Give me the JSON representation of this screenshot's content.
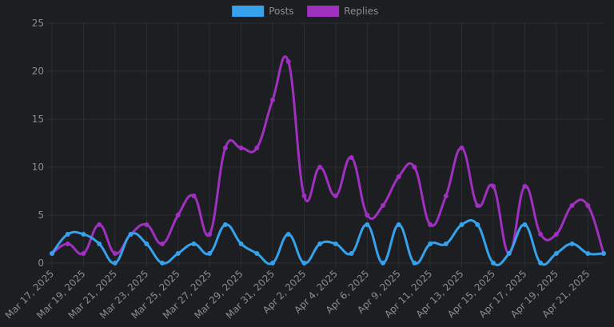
{
  "chart_data": {
    "type": "line",
    "title": "",
    "xlabel": "",
    "ylabel": "",
    "ylim": [
      0,
      25
    ],
    "yticks": [
      0,
      5,
      10,
      15,
      20,
      25
    ],
    "grid": true,
    "legend_position": "top-center",
    "x": [
      "Mar 17, 2025",
      "Mar 18, 2025",
      "Mar 19, 2025",
      "Mar 20, 2025",
      "Mar 21, 2025",
      "Mar 22, 2025",
      "Mar 23, 2025",
      "Mar 24, 2025",
      "Mar 25, 2025",
      "Mar 26, 2025",
      "Mar 27, 2025",
      "Mar 28, 2025",
      "Mar 29, 2025",
      "Mar 30, 2025",
      "Mar 31, 2025",
      "Apr 1, 2025",
      "Apr 2, 2025",
      "Apr 3, 2025",
      "Apr 4, 2025",
      "Apr 5, 2025",
      "Apr 6, 2025",
      "Apr 8, 2025",
      "Apr 9, 2025",
      "Apr 10, 2025",
      "Apr 11, 2025",
      "Apr 12, 2025",
      "Apr 13, 2025",
      "Apr 14, 2025",
      "Apr 15, 2025",
      "Apr 16, 2025",
      "Apr 17, 2025",
      "Apr 18, 2025",
      "Apr 19, 2025",
      "Apr 20, 2025",
      "Apr 21, 2025",
      "Apr 22, 2025"
    ],
    "x_tick_labels": [
      "Mar 17, 2025",
      "Mar 19, 2025",
      "Mar 21, 2025",
      "Mar 23, 2025",
      "Mar 25, 2025",
      "Mar 27, 2025",
      "Mar 29, 2025",
      "Mar 31, 2025",
      "Apr 2, 2025",
      "Apr 4, 2025",
      "Apr 6, 2025",
      "Apr 9, 2025",
      "Apr 11, 2025",
      "Apr 13, 2025",
      "Apr 15, 2025",
      "Apr 17, 2025",
      "Apr 19, 2025",
      "Apr 21, 2025"
    ],
    "series": [
      {
        "name": "Posts",
        "color": "#36a2eb",
        "values": [
          1,
          3,
          3,
          2,
          0,
          3,
          2,
          0,
          1,
          2,
          1,
          4,
          2,
          1,
          0,
          3,
          0,
          2,
          2,
          1,
          4,
          0,
          4,
          0,
          2,
          2,
          4,
          4,
          0,
          1,
          4,
          0,
          1,
          2,
          1,
          1
        ]
      },
      {
        "name": "Replies",
        "color": "#a030c0",
        "values": [
          1,
          2,
          1,
          4,
          1,
          3,
          4,
          2,
          5,
          7,
          3,
          12,
          12,
          12,
          17,
          21,
          7,
          10,
          7,
          11,
          5,
          6,
          9,
          10,
          4,
          7,
          12,
          6,
          8,
          1,
          8,
          3,
          3,
          6,
          6,
          1
        ]
      }
    ]
  }
}
